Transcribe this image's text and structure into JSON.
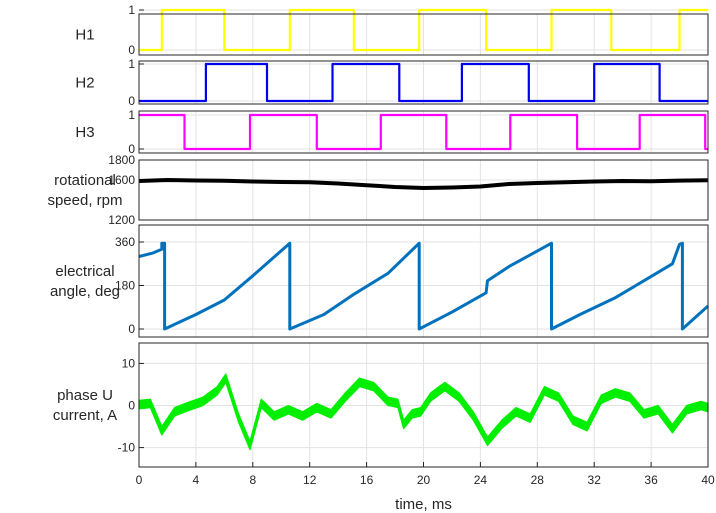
{
  "chart_data": [
    {
      "type": "line",
      "ylabel": "H1",
      "ylim": [
        0,
        1
      ],
      "yticks": [
        "0",
        "1"
      ],
      "xlim": [
        0,
        40
      ],
      "grid": true,
      "series": [
        {
          "color": "#ffff00",
          "step": true,
          "x": [
            0,
            1.6,
            1.6,
            6.0,
            6.0,
            10.6,
            10.6,
            15.1,
            15.1,
            19.7,
            19.7,
            24.4,
            24.4,
            29.0,
            29.0,
            33.2,
            33.2,
            38.0,
            38.0,
            40
          ],
          "y": [
            0,
            0,
            1,
            1,
            0,
            0,
            1,
            1,
            0,
            0,
            1,
            1,
            0,
            0,
            1,
            1,
            0,
            0,
            1,
            1
          ]
        }
      ]
    },
    {
      "type": "line",
      "ylabel": "H2",
      "ylim": [
        0,
        1
      ],
      "yticks": [
        "0",
        "1"
      ],
      "xlim": [
        0,
        40
      ],
      "grid": true,
      "series": [
        {
          "color": "#0000ee",
          "step": true,
          "x": [
            0,
            4.7,
            4.7,
            9.0,
            9.0,
            13.6,
            13.6,
            18.3,
            18.3,
            22.7,
            22.7,
            27.4,
            27.4,
            32.0,
            32.0,
            36.6,
            36.6,
            40
          ],
          "y": [
            0,
            0,
            1,
            1,
            0,
            0,
            1,
            1,
            0,
            0,
            1,
            1,
            0,
            0,
            1,
            1,
            0,
            0
          ]
        }
      ]
    },
    {
      "type": "line",
      "ylabel": "H3",
      "ylim": [
        0,
        1
      ],
      "yticks": [
        "0",
        "1"
      ],
      "xlim": [
        0,
        40
      ],
      "grid": true,
      "series": [
        {
          "color": "#ff00ff",
          "step": true,
          "x": [
            0,
            3.2,
            3.2,
            7.8,
            7.8,
            12.5,
            12.5,
            17.0,
            17.0,
            21.6,
            21.6,
            26.1,
            26.1,
            30.8,
            30.8,
            35.2,
            35.2,
            39.8,
            39.8,
            40
          ],
          "y": [
            1,
            1,
            0,
            0,
            1,
            1,
            0,
            0,
            1,
            1,
            0,
            0,
            1,
            1,
            0,
            0,
            1,
            1,
            0,
            0
          ]
        }
      ]
    },
    {
      "type": "line",
      "ylabel": "rotational\nspeed, rpm",
      "ylim": [
        1200,
        1800
      ],
      "yticks": [
        "1200",
        "1600",
        "1800"
      ],
      "ytick_values": [
        1200,
        1600,
        1800
      ],
      "xlim": [
        0,
        40
      ],
      "grid": true,
      "series": [
        {
          "color": "#000000",
          "width": 4,
          "x": [
            0,
            2,
            4,
            6,
            8,
            10,
            12,
            14,
            16,
            18,
            20,
            22,
            24,
            26,
            28,
            30,
            32,
            34,
            36,
            38,
            40
          ],
          "y": [
            1590,
            1600,
            1595,
            1592,
            1585,
            1580,
            1578,
            1565,
            1548,
            1530,
            1520,
            1525,
            1535,
            1560,
            1570,
            1578,
            1585,
            1590,
            1588,
            1594,
            1598
          ]
        }
      ]
    },
    {
      "type": "line",
      "ylabel": "electrical\nangle, deg",
      "ylim": [
        0,
        360
      ],
      "yticks": [
        "0",
        "180",
        "360"
      ],
      "ytick_values": [
        0,
        180,
        360
      ],
      "xlim": [
        0,
        40
      ],
      "grid": true,
      "series": [
        {
          "color": "#0072bd",
          "width": 3,
          "x": [
            0,
            1.0,
            1.6,
            1.6,
            1.8,
            1.8,
            4.0,
            6.0,
            8.0,
            10.6,
            10.6,
            13.0,
            15.0,
            17.5,
            19.7,
            19.7,
            22.0,
            24.4,
            24.5,
            26.0,
            29.0,
            29.0,
            31.0,
            33.5,
            35.5,
            37.5,
            38.0,
            38.2,
            38.2,
            40
          ],
          "y": [
            300,
            315,
            330,
            355,
            355,
            0,
            60,
            120,
            220,
            355,
            0,
            60,
            140,
            230,
            355,
            0,
            70,
            150,
            200,
            258,
            355,
            0,
            60,
            130,
            200,
            270,
            350,
            355,
            0,
            95
          ]
        }
      ]
    },
    {
      "type": "line",
      "ylabel": "phase U\ncurrent, A",
      "ylim": [
        -12,
        12
      ],
      "yticks": [
        "-10",
        "0",
        "10"
      ],
      "ytick_values": [
        -10,
        0,
        10
      ],
      "xlim": [
        0,
        40
      ],
      "xticks": [
        "0",
        "4",
        "8",
        "12",
        "16",
        "20",
        "24",
        "28",
        "32",
        "36",
        "40"
      ],
      "xtick_values": [
        0,
        4,
        8,
        12,
        16,
        20,
        24,
        28,
        32,
        36,
        40
      ],
      "xlabel": "time, ms",
      "grid": true,
      "series": [
        {
          "color": "#00ee00",
          "width": 3,
          "band": 2.0,
          "x": [
            0,
            0.8,
            1.6,
            2.5,
            3.5,
            4.5,
            5.5,
            6.1,
            7.0,
            7.8,
            8.6,
            9.5,
            10.5,
            11.5,
            12.5,
            13.5,
            14.5,
            15.5,
            16.5,
            17.5,
            18.2,
            18.6,
            19.2,
            19.8,
            20.5,
            21.5,
            22.5,
            23.5,
            24.5,
            25.5,
            26.5,
            27.5,
            28.5,
            29.5,
            30.5,
            31.5,
            32.5,
            33.5,
            34.5,
            35.5,
            36.5,
            37.5,
            38.5,
            39.5,
            40
          ],
          "y": [
            0.2,
            0.5,
            -6.0,
            -1.5,
            -0.2,
            1.0,
            3.5,
            6.5,
            -3.0,
            -9.5,
            0.5,
            -2.5,
            -1.0,
            -2.5,
            -0.5,
            -2.0,
            2.0,
            5.5,
            4.5,
            1.0,
            0.5,
            -4.5,
            -2.0,
            -1.5,
            2.0,
            4.5,
            2.0,
            -2.5,
            -8.5,
            -4.5,
            -1.5,
            -3.0,
            3.5,
            2.0,
            -3.5,
            -5.0,
            1.5,
            3.0,
            2.0,
            -2.0,
            -1.0,
            -5.5,
            -1.0,
            0.0,
            -0.5
          ]
        }
      ]
    }
  ]
}
